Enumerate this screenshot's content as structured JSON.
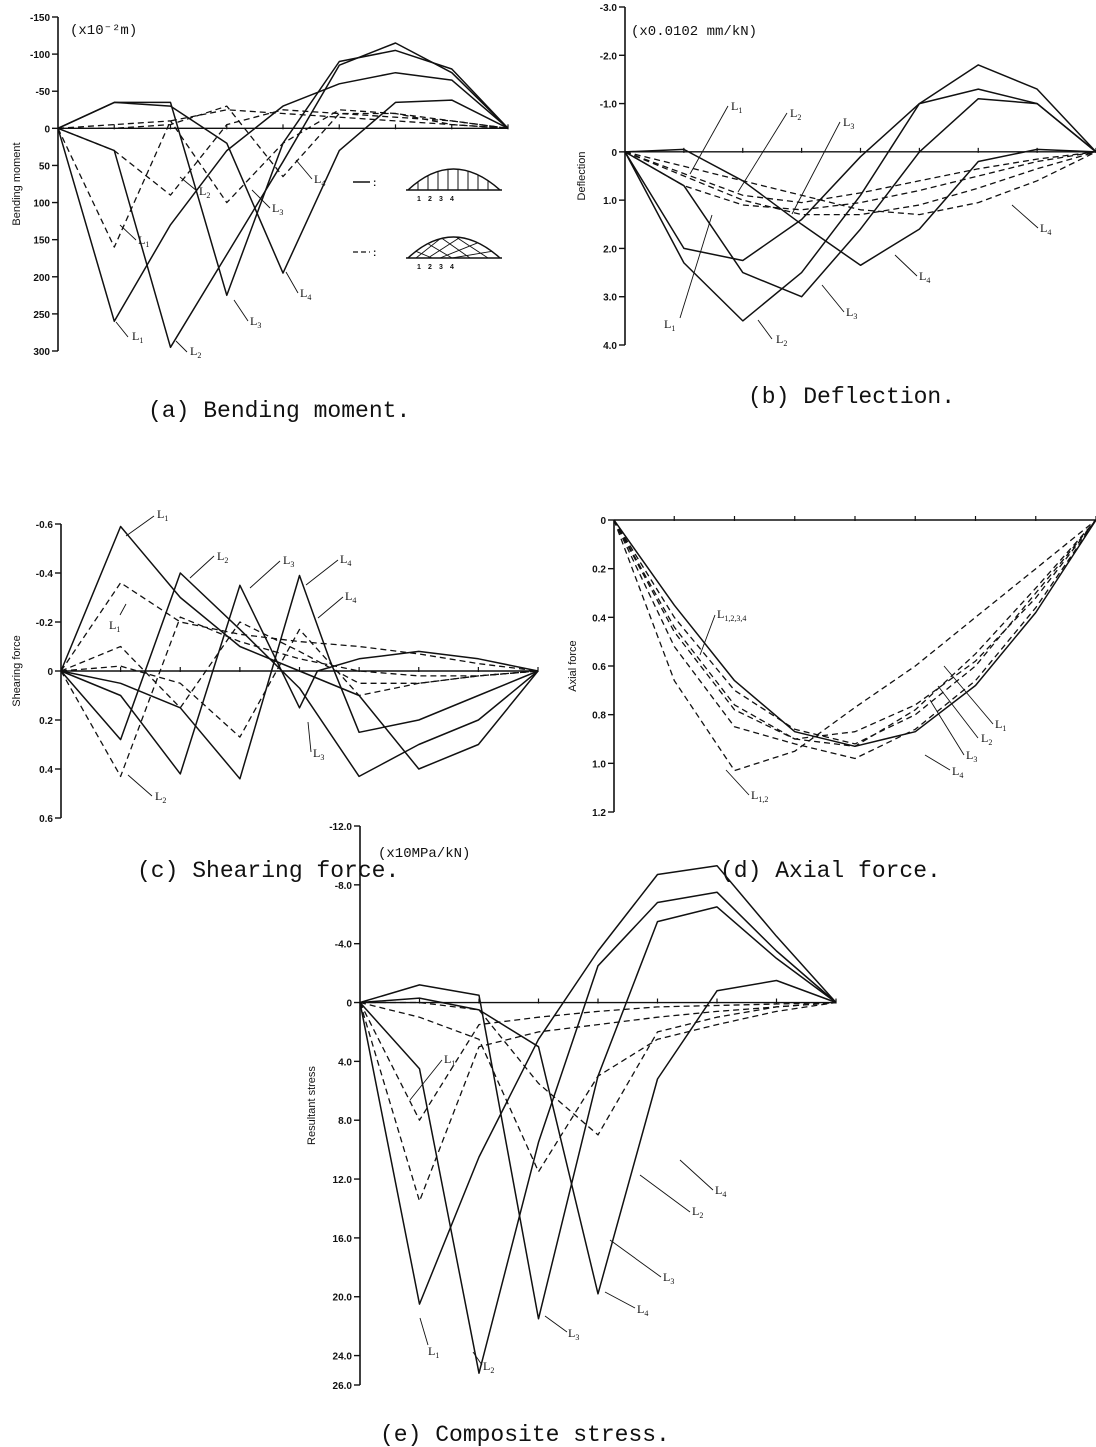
{
  "chart_data": [
    {
      "id": "a",
      "type": "line",
      "caption": "(a) Bending moment.",
      "ylabel": "Bending moment",
      "unit": "(x10⁻²m)",
      "ylim": [
        -150,
        300
      ],
      "yticks": [
        "-150",
        "-100",
        "-50",
        "0",
        "50",
        "100",
        "150",
        "200",
        "250",
        "300"
      ],
      "ytick_values": [
        -150,
        -100,
        -50,
        0,
        50,
        100,
        150,
        200,
        250,
        300
      ],
      "x_ticks": [
        0,
        1,
        2,
        3,
        4,
        5,
        6,
        7,
        8
      ],
      "legend": {
        "solid": ":",
        "dashed": ":",
        "panel_numbers": [
          "1",
          "2",
          "3",
          "4"
        ]
      },
      "series": [
        {
          "name": "L1",
          "style": "solid",
          "x": [
            0,
            1,
            2,
            3,
            4,
            5,
            6,
            7,
            8
          ],
          "y": [
            0,
            260,
            130,
            30,
            -30,
            -60,
            -75,
            -65,
            0
          ]
        },
        {
          "name": "L2",
          "style": "solid",
          "x": [
            0,
            1,
            2,
            3,
            4,
            5,
            6,
            7,
            8
          ],
          "y": [
            0,
            30,
            295,
            170,
            45,
            -85,
            -115,
            -75,
            0
          ]
        },
        {
          "name": "L3",
          "style": "solid",
          "x": [
            0,
            1,
            2,
            3,
            4,
            5,
            6,
            7,
            8
          ],
          "y": [
            0,
            -35,
            -35,
            225,
            20,
            -90,
            -105,
            -80,
            0
          ]
        },
        {
          "name": "L4",
          "style": "solid",
          "x": [
            0,
            1,
            2,
            3,
            4,
            5,
            6,
            7,
            8
          ],
          "y": [
            0,
            -35,
            -30,
            20,
            195,
            30,
            -35,
            -38,
            0
          ]
        },
        {
          "name": "L1",
          "style": "dashed",
          "x": [
            0,
            1,
            2,
            3,
            4,
            5,
            6,
            7,
            8
          ],
          "y": [
            0,
            160,
            -10,
            -25,
            -20,
            -15,
            -10,
            -5,
            0
          ]
        },
        {
          "name": "L2",
          "style": "dashed",
          "x": [
            0,
            1,
            2,
            3,
            4,
            5,
            6,
            7,
            8
          ],
          "y": [
            0,
            30,
            90,
            -5,
            -25,
            -20,
            -15,
            -10,
            0
          ]
        },
        {
          "name": "L3",
          "style": "dashed",
          "x": [
            0,
            1,
            2,
            3,
            4,
            5,
            6,
            7,
            8
          ],
          "y": [
            0,
            -5,
            -10,
            100,
            20,
            -25,
            -20,
            -10,
            0
          ]
        },
        {
          "name": "L4",
          "style": "dashed",
          "x": [
            0,
            1,
            2,
            3,
            4,
            5,
            6,
            7,
            8
          ],
          "y": [
            0,
            0,
            -5,
            -30,
            65,
            -20,
            -20,
            -5,
            0
          ]
        }
      ]
    },
    {
      "id": "b",
      "type": "line",
      "caption": "(b) Deflection.",
      "ylabel": "Deflection",
      "unit": "(x0.0102 mm/kN)",
      "ylim": [
        -3.0,
        4.0
      ],
      "yticks": [
        "-3.0",
        "-2.0",
        "-1.0",
        "0",
        "1.0",
        "2.0",
        "3.0",
        "4.0"
      ],
      "ytick_values": [
        -3,
        -2,
        -1,
        0,
        1,
        2,
        3,
        4
      ],
      "x_ticks": [
        0,
        1,
        2,
        3,
        4,
        5,
        6,
        7,
        8
      ],
      "series": [
        {
          "name": "L1",
          "style": "solid",
          "x": [
            0,
            1,
            2,
            3,
            4,
            5,
            6,
            7,
            8
          ],
          "y": [
            0,
            2.3,
            3.5,
            2.5,
            0.9,
            -1.0,
            -1.8,
            -1.3,
            0
          ]
        },
        {
          "name": "L2",
          "style": "solid",
          "x": [
            0,
            1,
            2,
            3,
            4,
            5,
            6,
            7,
            8
          ],
          "y": [
            0,
            2.0,
            2.25,
            1.4,
            0.1,
            -1.0,
            -1.3,
            -1.0,
            0
          ]
        },
        {
          "name": "L3",
          "style": "solid",
          "x": [
            0,
            1,
            2,
            3,
            4,
            5,
            6,
            7,
            8
          ],
          "y": [
            0,
            0.7,
            2.5,
            3.0,
            1.6,
            0.0,
            -1.1,
            -1.0,
            0
          ]
        },
        {
          "name": "L4",
          "style": "solid",
          "x": [
            0,
            1,
            2,
            3,
            4,
            5,
            6,
            7,
            8
          ],
          "y": [
            0,
            -0.05,
            0.6,
            1.5,
            2.35,
            1.6,
            0.2,
            -0.05,
            0
          ]
        },
        {
          "name": "L1",
          "style": "dashed",
          "x": [
            0,
            1,
            2,
            3,
            4,
            5,
            6,
            7,
            8
          ],
          "y": [
            0,
            0.45,
            0.9,
            1.05,
            0.85,
            0.6,
            0.35,
            0.15,
            0
          ]
        },
        {
          "name": "L2",
          "style": "dashed",
          "x": [
            0,
            1,
            2,
            3,
            4,
            5,
            6,
            7,
            8
          ],
          "y": [
            0,
            0.7,
            1.1,
            1.2,
            1.05,
            0.8,
            0.5,
            0.2,
            0
          ]
        },
        {
          "name": "L3",
          "style": "dashed",
          "x": [
            0,
            1,
            2,
            3,
            4,
            5,
            6,
            7,
            8
          ],
          "y": [
            0,
            0.5,
            1.0,
            1.3,
            1.3,
            1.1,
            0.75,
            0.35,
            0
          ]
        },
        {
          "name": "L4",
          "style": "dashed",
          "x": [
            0,
            1,
            2,
            3,
            4,
            5,
            6,
            7,
            8
          ],
          "y": [
            0,
            0.3,
            0.6,
            0.9,
            1.2,
            1.3,
            1.05,
            0.6,
            0
          ]
        }
      ]
    },
    {
      "id": "c",
      "type": "line",
      "caption": "(c) Shearing force.",
      "ylabel": "Shearing force",
      "ylim": [
        -0.6,
        0.6
      ],
      "yticks": [
        "-0.6",
        "-0.4",
        "-0.2",
        "0",
        "0.2",
        "0.4",
        "0.6"
      ],
      "ytick_values": [
        -0.6,
        -0.4,
        -0.2,
        0,
        0.2,
        0.4,
        0.6
      ],
      "x_ticks": [
        0,
        1,
        2,
        3,
        4,
        5,
        6,
        7,
        8
      ],
      "series": [
        {
          "name": "L1",
          "style": "solid",
          "x": [
            0,
            1,
            2,
            3,
            4,
            5,
            6,
            7,
            8
          ],
          "y": [
            0,
            -0.59,
            -0.3,
            -0.1,
            0.0,
            0.1,
            0.4,
            0.3,
            0
          ]
        },
        {
          "name": "L2",
          "style": "solid",
          "x": [
            0,
            1,
            2,
            3,
            4,
            5,
            6,
            7,
            8
          ],
          "y": [
            0,
            0.28,
            -0.4,
            -0.17,
            0.07,
            0.43,
            0.3,
            0.2,
            0
          ]
        },
        {
          "name": "L3",
          "style": "solid",
          "x": [
            0,
            1,
            2,
            3,
            4,
            4.3,
            5,
            6,
            7,
            8
          ],
          "y": [
            0,
            0.1,
            0.42,
            -0.35,
            0.15,
            0.0,
            -0.05,
            -0.08,
            -0.05,
            0
          ]
        },
        {
          "name": "L4",
          "style": "solid",
          "x": [
            0,
            1,
            2,
            3,
            4,
            4.5,
            5,
            6,
            7,
            8
          ],
          "y": [
            0,
            0.05,
            0.15,
            0.44,
            -0.39,
            -0.05,
            0.25,
            0.2,
            0.1,
            0
          ]
        },
        {
          "name": "L1",
          "style": "dashed",
          "x": [
            0,
            1,
            2,
            3,
            4,
            5,
            6,
            7,
            8
          ],
          "y": [
            0,
            -0.36,
            -0.2,
            -0.15,
            -0.12,
            -0.1,
            -0.07,
            -0.03,
            0
          ]
        },
        {
          "name": "L2",
          "style": "dashed",
          "x": [
            0,
            1,
            2,
            3,
            4,
            5,
            6,
            7,
            8
          ],
          "y": [
            0,
            0.43,
            -0.22,
            -0.12,
            -0.05,
            0.0,
            0.02,
            0.02,
            0
          ]
        },
        {
          "name": "L3",
          "style": "dashed",
          "x": [
            0,
            1,
            2,
            3,
            4,
            5,
            6,
            7,
            8
          ],
          "y": [
            0,
            -0.1,
            0.15,
            -0.2,
            -0.08,
            0.05,
            0.05,
            0.02,
            0
          ]
        },
        {
          "name": "L4",
          "style": "dashed",
          "x": [
            0,
            1,
            2,
            3,
            4,
            5,
            6,
            7,
            8
          ],
          "y": [
            0,
            -0.02,
            0.05,
            0.27,
            -0.17,
            0.1,
            0.05,
            0.02,
            0
          ]
        }
      ]
    },
    {
      "id": "d",
      "type": "line",
      "caption": "(d) Axial force.",
      "ylabel": "Axial force",
      "ylim": [
        0,
        1.2
      ],
      "yticks": [
        "0",
        "0.2",
        "0.4",
        "0.6",
        "0.8",
        "1.0",
        "1.2"
      ],
      "ytick_values": [
        0,
        0.2,
        0.4,
        0.6,
        0.8,
        1.0,
        1.2
      ],
      "x_ticks": [
        0,
        1,
        2,
        3,
        4,
        5,
        6,
        7,
        8
      ],
      "series": [
        {
          "name": "L1,2,3,4",
          "style": "solid",
          "x": [
            0,
            1,
            2,
            3,
            4,
            5,
            6,
            7,
            8
          ],
          "y": [
            0,
            0.35,
            0.66,
            0.87,
            0.93,
            0.87,
            0.68,
            0.38,
            0
          ]
        },
        {
          "name": "L1,2",
          "style": "dashed",
          "x": [
            0,
            1,
            2,
            3,
            4,
            5,
            6,
            7,
            8
          ],
          "y": [
            0,
            0.66,
            1.03,
            0.95,
            0.77,
            0.6,
            0.4,
            0.2,
            0
          ]
        },
        {
          "name": "L1",
          "style": "dashed",
          "x": [
            0,
            1,
            2,
            3,
            4,
            5,
            6,
            7,
            8
          ],
          "y": [
            0,
            0.46,
            0.78,
            0.9,
            0.87,
            0.76,
            0.58,
            0.32,
            0
          ]
        },
        {
          "name": "L2",
          "style": "dashed",
          "x": [
            0,
            1,
            2,
            3,
            4,
            5,
            6,
            7,
            8
          ],
          "y": [
            0,
            0.52,
            0.85,
            0.92,
            0.98,
            0.86,
            0.66,
            0.36,
            0
          ]
        },
        {
          "name": "L3",
          "style": "dashed",
          "x": [
            0,
            1,
            2,
            3,
            4,
            5,
            6,
            7,
            8
          ],
          "y": [
            0,
            0.44,
            0.76,
            0.9,
            0.93,
            0.78,
            0.55,
            0.28,
            0
          ]
        },
        {
          "name": "L4",
          "style": "dashed",
          "x": [
            0,
            1,
            2,
            3,
            4,
            5,
            6,
            7,
            8
          ],
          "y": [
            0,
            0.4,
            0.7,
            0.86,
            0.92,
            0.8,
            0.6,
            0.3,
            0
          ]
        }
      ]
    },
    {
      "id": "e",
      "type": "line",
      "caption": "(e) Composite stress.",
      "ylabel": "Resultant stress",
      "unit": "(x10MPa/kN)",
      "ylim": [
        -12.0,
        26.0
      ],
      "yticks": [
        "-12.0",
        "-8.0",
        "-4.0",
        "0",
        "4.0",
        "8.0",
        "12.0",
        "16.0",
        "20.0",
        "24.0",
        "26.0"
      ],
      "ytick_values": [
        -12,
        -8,
        -4,
        0,
        4,
        8,
        12,
        16,
        20,
        24,
        26
      ],
      "x_ticks": [
        0,
        1,
        2,
        3,
        4,
        5,
        6,
        7,
        8
      ],
      "series": [
        {
          "name": "L1",
          "style": "solid",
          "x": [
            0,
            1,
            2,
            3,
            4,
            5,
            6,
            7,
            8
          ],
          "y": [
            0,
            20.5,
            10.5,
            2.5,
            -3.5,
            -8.7,
            -9.3,
            -4.5,
            0
          ]
        },
        {
          "name": "L2",
          "style": "solid",
          "x": [
            0,
            1,
            2,
            3,
            4,
            5,
            6,
            7,
            8
          ],
          "y": [
            0,
            4.5,
            25.2,
            9.5,
            -2.5,
            -6.8,
            -7.5,
            -3.5,
            0
          ]
        },
        {
          "name": "L3",
          "style": "solid",
          "x": [
            0,
            1,
            2,
            3,
            4,
            5,
            6,
            7,
            8
          ],
          "y": [
            0,
            -1.2,
            -0.5,
            21.5,
            5.0,
            -5.5,
            -6.5,
            -3.0,
            0
          ]
        },
        {
          "name": "L4",
          "style": "solid",
          "x": [
            0,
            1,
            2,
            3,
            4,
            5,
            6,
            7,
            8
          ],
          "y": [
            0,
            -0.3,
            0.5,
            3.0,
            19.8,
            5.2,
            -0.8,
            -1.5,
            0
          ]
        },
        {
          "name": "L1",
          "style": "dashed",
          "x": [
            0,
            1,
            2,
            3,
            4,
            5,
            6,
            7,
            8
          ],
          "y": [
            0,
            8.0,
            1.5,
            1.0,
            0.6,
            0.3,
            0.2,
            0.1,
            0
          ]
        },
        {
          "name": "L2",
          "style": "dashed",
          "x": [
            0,
            1,
            2,
            3,
            4,
            5,
            6,
            7,
            8
          ],
          "y": [
            0,
            13.5,
            3.0,
            2.0,
            1.5,
            1.0,
            0.6,
            0.3,
            0
          ]
        },
        {
          "name": "L3",
          "style": "dashed",
          "x": [
            0,
            1,
            2,
            3,
            4,
            5,
            6,
            7,
            8
          ],
          "y": [
            0,
            1.0,
            2.5,
            11.5,
            5.0,
            2.5,
            1.5,
            0.6,
            0
          ]
        },
        {
          "name": "L4",
          "style": "dashed",
          "x": [
            0,
            1,
            2,
            3,
            4,
            5,
            6,
            7,
            8
          ],
          "y": [
            0,
            0.0,
            0.5,
            5.5,
            9.0,
            2.0,
            1.0,
            0.3,
            0
          ]
        }
      ]
    }
  ]
}
